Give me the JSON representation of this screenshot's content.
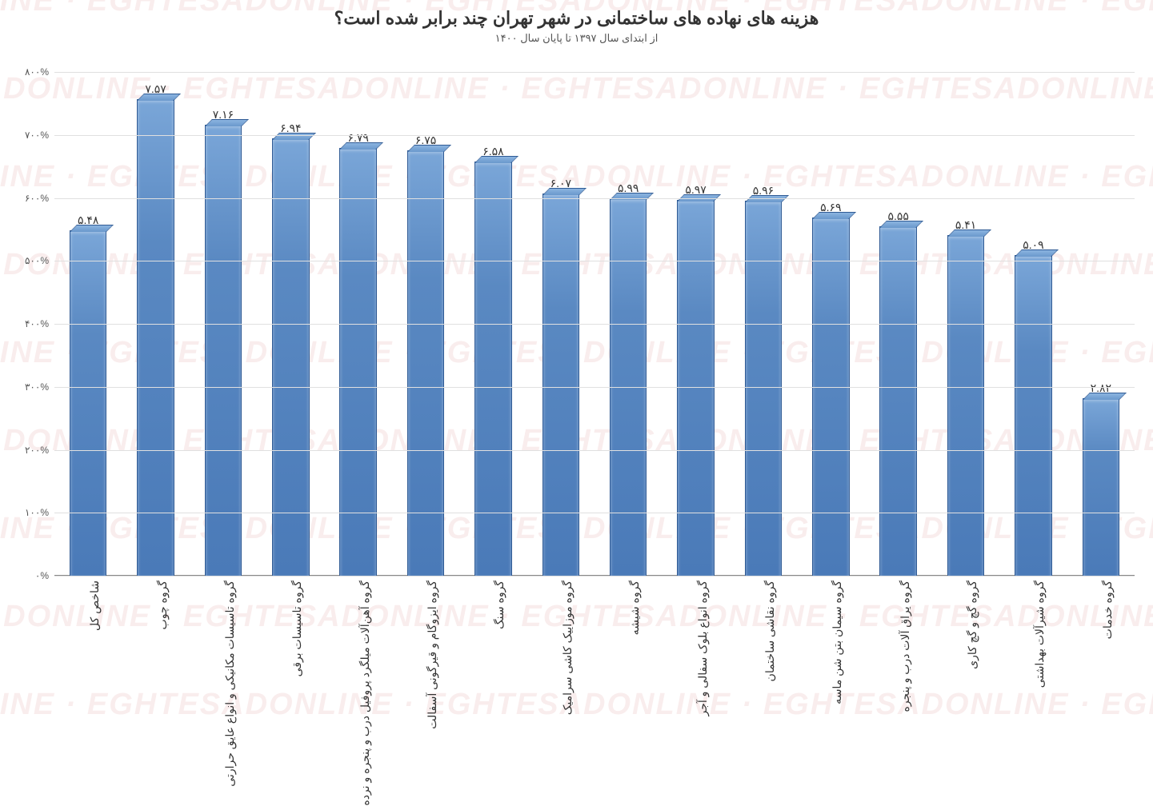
{
  "chart": {
    "type": "bar",
    "title": "هزینه های نهاده های ساختمانی در شهر تهران چند برابر شده است؟",
    "subtitle": "از ابتدای سال ۱۳۹۷ تا پایان سال ۱۴۰۰",
    "title_fontsize": 22,
    "subtitle_fontsize": 13,
    "label_fontsize": 14,
    "value_fontsize": 14,
    "ytick_fontsize": 12,
    "background_color": "#ffffff",
    "grid_color": "#e0e0e0",
    "text_color": "#333333",
    "bar_color_top": "#7aa6d8",
    "bar_color_bottom": "#4a7ab8",
    "bar_border_color": "#2f5a94",
    "bar_width_ratio": 0.55,
    "ylim": [
      0,
      800
    ],
    "ytick_step": 100,
    "yticks": [
      {
        "v": 0,
        "label": "۰%"
      },
      {
        "v": 100,
        "label": "۱۰۰%"
      },
      {
        "v": 200,
        "label": "۲۰۰%"
      },
      {
        "v": 300,
        "label": "۳۰۰%"
      },
      {
        "v": 400,
        "label": "۴۰۰%"
      },
      {
        "v": 500,
        "label": "۵۰۰%"
      },
      {
        "v": 600,
        "label": "۶۰۰%"
      },
      {
        "v": 700,
        "label": "۷۰۰%"
      },
      {
        "v": 800,
        "label": "۸۰۰%"
      }
    ],
    "categories": [
      "شاخص کل",
      "گروه چوب",
      "گروه تاسیسات مکانیکی و انواع عایق حرارتی",
      "گروه تاسیسات برقی",
      "گروه آهن‌آلات میلگرد پروفیل درب و پنجره و نرده",
      "گروه ایزوگام و قیرگونی آسفالت",
      "گروه سنگ",
      "گروه موزاییک کاشی سرامیک",
      "گروه شیشه",
      "گروه انواع بلوک سفالی و آجر",
      "گروه نقاشی ساختمان",
      "گروه سیمان بتن شن ماسه",
      "گروه یراق آلات درب و پنجره",
      "گروه گچ و گچ کاری",
      "گروه شیرآلات بهداشتی",
      "گروه خدمات"
    ],
    "value_labels": [
      "۵.۴۸",
      "۷.۵۷",
      "۷.۱۶",
      "۶.۹۴",
      "۶.۷۹",
      "۶.۷۵",
      "۶.۵۸",
      "۶.۰۷",
      "۵.۹۹",
      "۵.۹۷",
      "۵.۹۶",
      "۵.۶۹",
      "۵.۵۵",
      "۵.۴۱",
      "۵.۰۹",
      "۲.۸۲"
    ],
    "values_percent": [
      548,
      757,
      716,
      694,
      679,
      675,
      658,
      607,
      599,
      597,
      596,
      569,
      555,
      541,
      509,
      282
    ],
    "watermark_text": "ESADONLINE · EGHTESADONLINE · EGHTESADONLINE · EGHTESADONLINE · EGHTESADONLINE",
    "watermark_color": "rgba(180,30,30,0.08)"
  }
}
